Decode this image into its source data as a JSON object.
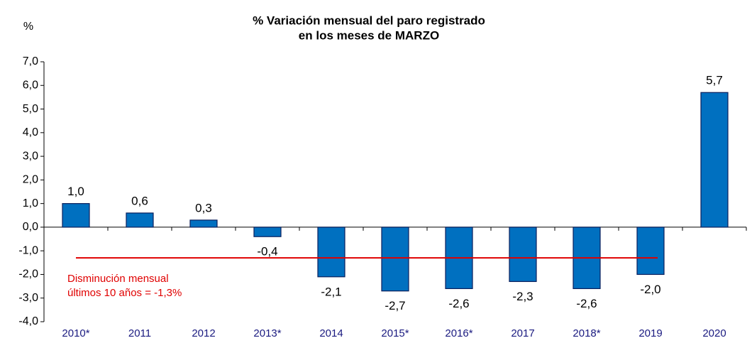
{
  "chart_data": {
    "type": "bar",
    "title": [
      "% Variación mensual del paro registrado",
      "en los meses de MARZO"
    ],
    "y_axis_label": "%",
    "categories": [
      "2010*",
      "2011",
      "2012",
      "2013*",
      "2014",
      "2015*",
      "2016*",
      "2017",
      "2018*",
      "2019",
      "2020"
    ],
    "values": [
      1.0,
      0.6,
      0.3,
      -0.4,
      -2.1,
      -2.7,
      -2.6,
      -2.3,
      -2.6,
      -2.0,
      5.7
    ],
    "value_labels": [
      "1,0",
      "0,6",
      "0,3",
      "-0,4",
      "-2,1",
      "-2,7",
      "-2,6",
      "-2,3",
      "-2,6",
      "-2,0",
      "5,7"
    ],
    "color": "#0070c0",
    "ylim": [
      -4,
      7
    ],
    "yticks": [
      {
        "value": -4,
        "label": "-4,0"
      },
      {
        "value": -3,
        "label": "-3,0"
      },
      {
        "value": -2,
        "label": "-2,0"
      },
      {
        "value": -1,
        "label": "-1,0"
      },
      {
        "value": 0,
        "label": "0,0"
      },
      {
        "value": 1,
        "label": "1,0"
      },
      {
        "value": 2,
        "label": "2,0"
      },
      {
        "value": 3,
        "label": "3,0"
      },
      {
        "value": 4,
        "label": "4,0"
      },
      {
        "value": 5,
        "label": "5,0"
      },
      {
        "value": 6,
        "label": "6,0"
      },
      {
        "value": 7,
        "label": "7,0"
      }
    ],
    "average_line": {
      "value": -1.3,
      "color": "#e00000",
      "label": [
        "Disminución mensual",
        "últimos 10 años = -1,3%"
      ]
    }
  }
}
